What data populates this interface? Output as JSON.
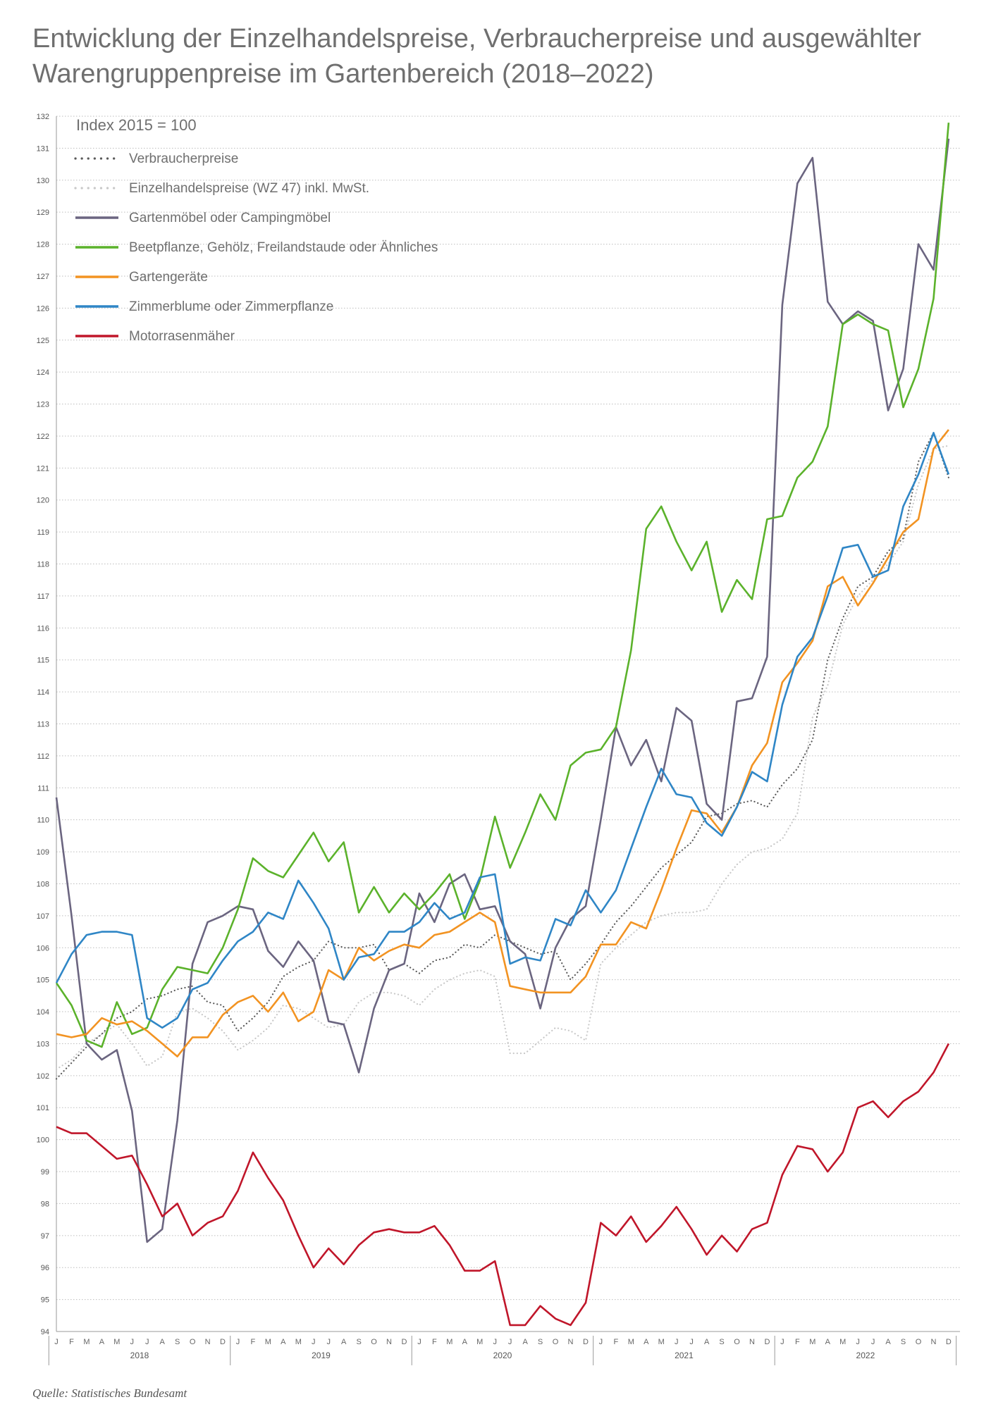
{
  "title_lines": [
    "Entwicklung der Einzelhandelspreise, Verbraucherpreise und ausgewählter",
    "Warengruppenpreise im Gartenbereich (2018–2022)"
  ],
  "source": "Quelle: Statistisches Bundesamt",
  "chart_data": {
    "type": "line",
    "index_label": "Index 2015 = 100",
    "ylim": [
      94,
      132
    ],
    "y_ticks": [
      94,
      95,
      96,
      97,
      98,
      99,
      100,
      101,
      102,
      103,
      104,
      105,
      106,
      107,
      108,
      109,
      110,
      111,
      112,
      113,
      114,
      115,
      116,
      117,
      118,
      119,
      120,
      121,
      122,
      123,
      124,
      125,
      126,
      127,
      128,
      129,
      130,
      131,
      132
    ],
    "month_labels": [
      "J",
      "F",
      "M",
      "A",
      "M",
      "J",
      "J",
      "A",
      "S",
      "O",
      "N",
      "D"
    ],
    "years": [
      "2018",
      "2019",
      "2020",
      "2021",
      "2022"
    ],
    "grid": "horizontal dotted",
    "legend_position": "top-left",
    "series": [
      {
        "name": "Verbraucherpreise",
        "color": "#5a5a5a",
        "style": "dotted",
        "values": [
          101.9,
          102.4,
          102.9,
          103.3,
          103.8,
          104.0,
          104.4,
          104.5,
          104.7,
          104.8,
          104.3,
          104.2,
          103.4,
          103.8,
          104.3,
          105.1,
          105.4,
          105.6,
          106.2,
          106.0,
          106.0,
          106.1,
          105.3,
          105.5,
          105.2,
          105.6,
          105.7,
          106.1,
          106.0,
          106.4,
          106.2,
          106.0,
          105.8,
          105.9,
          105.0,
          105.5,
          106.1,
          106.8,
          107.3,
          107.9,
          108.5,
          108.9,
          109.3,
          110.1,
          110.2,
          110.5,
          110.6,
          110.4,
          111.1,
          111.6,
          112.5,
          115.0,
          116.3,
          117.3,
          117.6,
          118.4,
          118.8,
          121.2,
          122.1,
          120.7
        ]
      },
      {
        "name": "Einzelhandelspreise (WZ 47) inkl. MwSt.",
        "color": "#c8c8c8",
        "style": "dotted",
        "values": [
          102.2,
          102.5,
          103.0,
          103.3,
          103.6,
          103.0,
          102.3,
          102.6,
          104.0,
          104.1,
          103.8,
          103.4,
          102.8,
          103.1,
          103.5,
          104.2,
          104.1,
          103.8,
          103.5,
          103.6,
          104.3,
          104.6,
          104.6,
          104.5,
          104.2,
          104.7,
          105.0,
          105.2,
          105.3,
          105.1,
          102.7,
          102.7,
          103.1,
          103.5,
          103.4,
          103.1,
          105.5,
          106.0,
          106.4,
          106.8,
          107.0,
          107.1,
          107.1,
          107.2,
          108.0,
          108.6,
          109.0,
          109.1,
          109.4,
          110.2,
          113.2,
          114.2,
          116.1,
          117.0,
          117.5,
          118.0,
          118.7,
          120.5,
          121.6,
          121.7
        ]
      },
      {
        "name": "Gartenmöbel oder Campingmöbel",
        "color": "#6b6580",
        "style": "solid",
        "values": [
          110.7,
          107.0,
          103.0,
          102.5,
          102.8,
          100.9,
          96.8,
          97.2,
          100.6,
          105.5,
          106.8,
          107.0,
          107.3,
          107.2,
          105.9,
          105.4,
          106.2,
          105.6,
          103.7,
          103.6,
          102.1,
          104.1,
          105.3,
          105.5,
          107.7,
          106.8,
          108.0,
          108.3,
          107.2,
          107.3,
          106.2,
          105.8,
          104.1,
          106.0,
          106.9,
          107.3,
          110.0,
          112.9,
          111.7,
          112.5,
          111.2,
          113.5,
          113.1,
          110.5,
          110.0,
          113.7,
          113.8,
          115.1,
          126.1,
          129.9,
          130.7,
          126.2,
          125.5,
          125.9,
          125.6,
          122.8,
          124.1,
          128.0,
          127.2,
          131.3
        ]
      },
      {
        "name": "Beetpflanze, Gehölz, Freilandstaude oder Ähnliches",
        "color": "#5bb22b",
        "style": "solid",
        "values": [
          104.9,
          104.2,
          103.1,
          102.9,
          104.3,
          103.3,
          103.5,
          104.7,
          105.4,
          105.3,
          105.2,
          106.0,
          107.2,
          108.8,
          108.4,
          108.2,
          108.9,
          109.6,
          108.7,
          109.3,
          107.1,
          107.9,
          107.1,
          107.7,
          107.2,
          107.7,
          108.3,
          106.9,
          108.1,
          110.1,
          108.5,
          109.6,
          110.8,
          110.0,
          111.7,
          112.1,
          112.2,
          112.9,
          115.3,
          119.1,
          119.8,
          118.7,
          117.8,
          118.7,
          116.5,
          117.5,
          116.9,
          119.4,
          119.5,
          120.7,
          121.2,
          122.3,
          125.5,
          125.8,
          125.5,
          125.3,
          122.9,
          124.1,
          126.3,
          131.8
        ]
      },
      {
        "name": "Gartengeräte",
        "color": "#f29322",
        "style": "solid",
        "values": [
          103.3,
          103.2,
          103.3,
          103.8,
          103.6,
          103.7,
          103.4,
          103.0,
          102.6,
          103.2,
          103.2,
          103.9,
          104.3,
          104.5,
          104.0,
          104.6,
          103.7,
          104.0,
          105.3,
          105.0,
          106.0,
          105.6,
          105.9,
          106.1,
          106.0,
          106.4,
          106.5,
          106.8,
          107.1,
          106.8,
          104.8,
          104.7,
          104.6,
          104.6,
          104.6,
          105.1,
          106.1,
          106.1,
          106.8,
          106.6,
          107.8,
          109.1,
          110.3,
          110.2,
          109.6,
          110.4,
          111.7,
          112.4,
          114.3,
          114.9,
          115.6,
          117.3,
          117.6,
          116.7,
          117.4,
          118.2,
          119.0,
          119.4,
          121.6,
          122.2
        ]
      },
      {
        "name": "Zimmerblume oder Zimmerpflanze",
        "color": "#2f86c6",
        "style": "solid",
        "values": [
          104.9,
          105.8,
          106.4,
          106.5,
          106.5,
          106.4,
          103.8,
          103.5,
          103.8,
          104.7,
          104.9,
          105.6,
          106.2,
          106.5,
          107.1,
          106.9,
          108.1,
          107.4,
          106.6,
          105.0,
          105.7,
          105.8,
          106.5,
          106.5,
          106.8,
          107.4,
          106.9,
          107.1,
          108.2,
          108.3,
          105.5,
          105.7,
          105.6,
          106.9,
          106.7,
          107.8,
          107.1,
          107.8,
          109.1,
          110.4,
          111.6,
          110.8,
          110.7,
          109.9,
          109.5,
          110.4,
          111.5,
          111.2,
          113.6,
          115.1,
          115.7,
          117.0,
          118.5,
          118.6,
          117.6,
          117.8,
          119.8,
          120.8,
          122.1,
          120.8
        ]
      },
      {
        "name": "Motorrasenmäher",
        "color": "#c0162a",
        "style": "solid",
        "values": [
          100.4,
          100.2,
          100.2,
          99.8,
          99.4,
          99.5,
          98.6,
          97.6,
          98.0,
          97.0,
          97.4,
          97.6,
          98.4,
          99.6,
          98.8,
          98.1,
          97.0,
          96.0,
          96.6,
          96.1,
          96.7,
          97.1,
          97.2,
          97.1,
          97.1,
          97.3,
          96.7,
          95.9,
          95.9,
          96.2,
          94.2,
          94.2,
          94.8,
          94.4,
          94.2,
          94.9,
          97.4,
          97.0,
          97.6,
          96.8,
          97.3,
          97.9,
          97.2,
          96.4,
          97.0,
          96.5,
          97.2,
          97.4,
          98.9,
          99.8,
          99.7,
          99.0,
          99.6,
          101.0,
          101.2,
          100.7,
          101.2,
          101.5,
          102.1,
          103.0
        ]
      }
    ]
  }
}
